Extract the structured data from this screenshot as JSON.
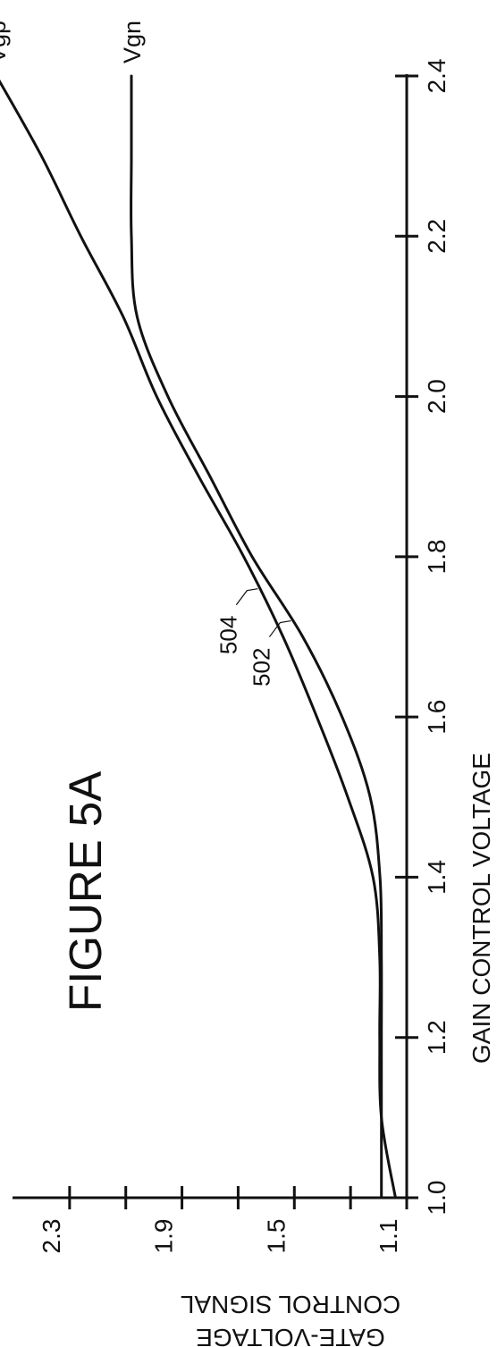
{
  "chart_data": {
    "type": "line",
    "title": "FIGURE 5A",
    "xlabel": "GAIN CONTROL VOLTAGE",
    "ylabel_lines": [
      "GATE-VOLTAGE",
      "CONTROL SIGNAL"
    ],
    "xlim": [
      1.0,
      2.4
    ],
    "ylim": [
      1.1,
      2.5
    ],
    "x_ticks": [
      1.0,
      1.2,
      1.4,
      1.6,
      1.8,
      2.0,
      2.2,
      2.4
    ],
    "x_tick_labels": [
      "1.0",
      "1.2",
      "1.4",
      "1.6",
      "1.8",
      "2.0",
      "2.2",
      "2.4"
    ],
    "y_ticks": [
      1.1,
      1.3,
      1.5,
      1.7,
      1.9,
      2.1,
      2.3
    ],
    "y_tick_labels": [
      "1.1",
      "1.5",
      "1.9",
      "2.3"
    ],
    "y_labeled_ticks": [
      1.1,
      1.5,
      1.9,
      2.3
    ],
    "grid": false,
    "series": [
      {
        "name": "Vgp",
        "ref": "504",
        "x": [
          1.0,
          1.1,
          1.2,
          1.3,
          1.4,
          1.5,
          1.6,
          1.7,
          1.8,
          1.9,
          2.0,
          2.1,
          2.2,
          2.3,
          2.4
        ],
        "y": [
          1.14,
          1.19,
          1.196,
          1.196,
          1.22,
          1.31,
          1.42,
          1.54,
          1.68,
          1.84,
          1.99,
          2.11,
          2.26,
          2.4,
          2.56
        ]
      },
      {
        "name": "Vgn",
        "ref": "502",
        "x": [
          1.0,
          1.1,
          1.2,
          1.3,
          1.4,
          1.5,
          1.6,
          1.7,
          1.8,
          1.9,
          2.0,
          2.1,
          2.2,
          2.3,
          2.4
        ],
        "y": [
          1.19,
          1.19,
          1.19,
          1.19,
          1.195,
          1.23,
          1.33,
          1.47,
          1.65,
          1.8,
          1.95,
          2.06,
          2.08,
          2.08,
          2.08
        ]
      }
    ],
    "annotations": [
      {
        "text": "502",
        "series": "Vgn",
        "x": 1.72
      },
      {
        "text": "504",
        "series": "Vgp",
        "x": 1.76
      }
    ]
  }
}
